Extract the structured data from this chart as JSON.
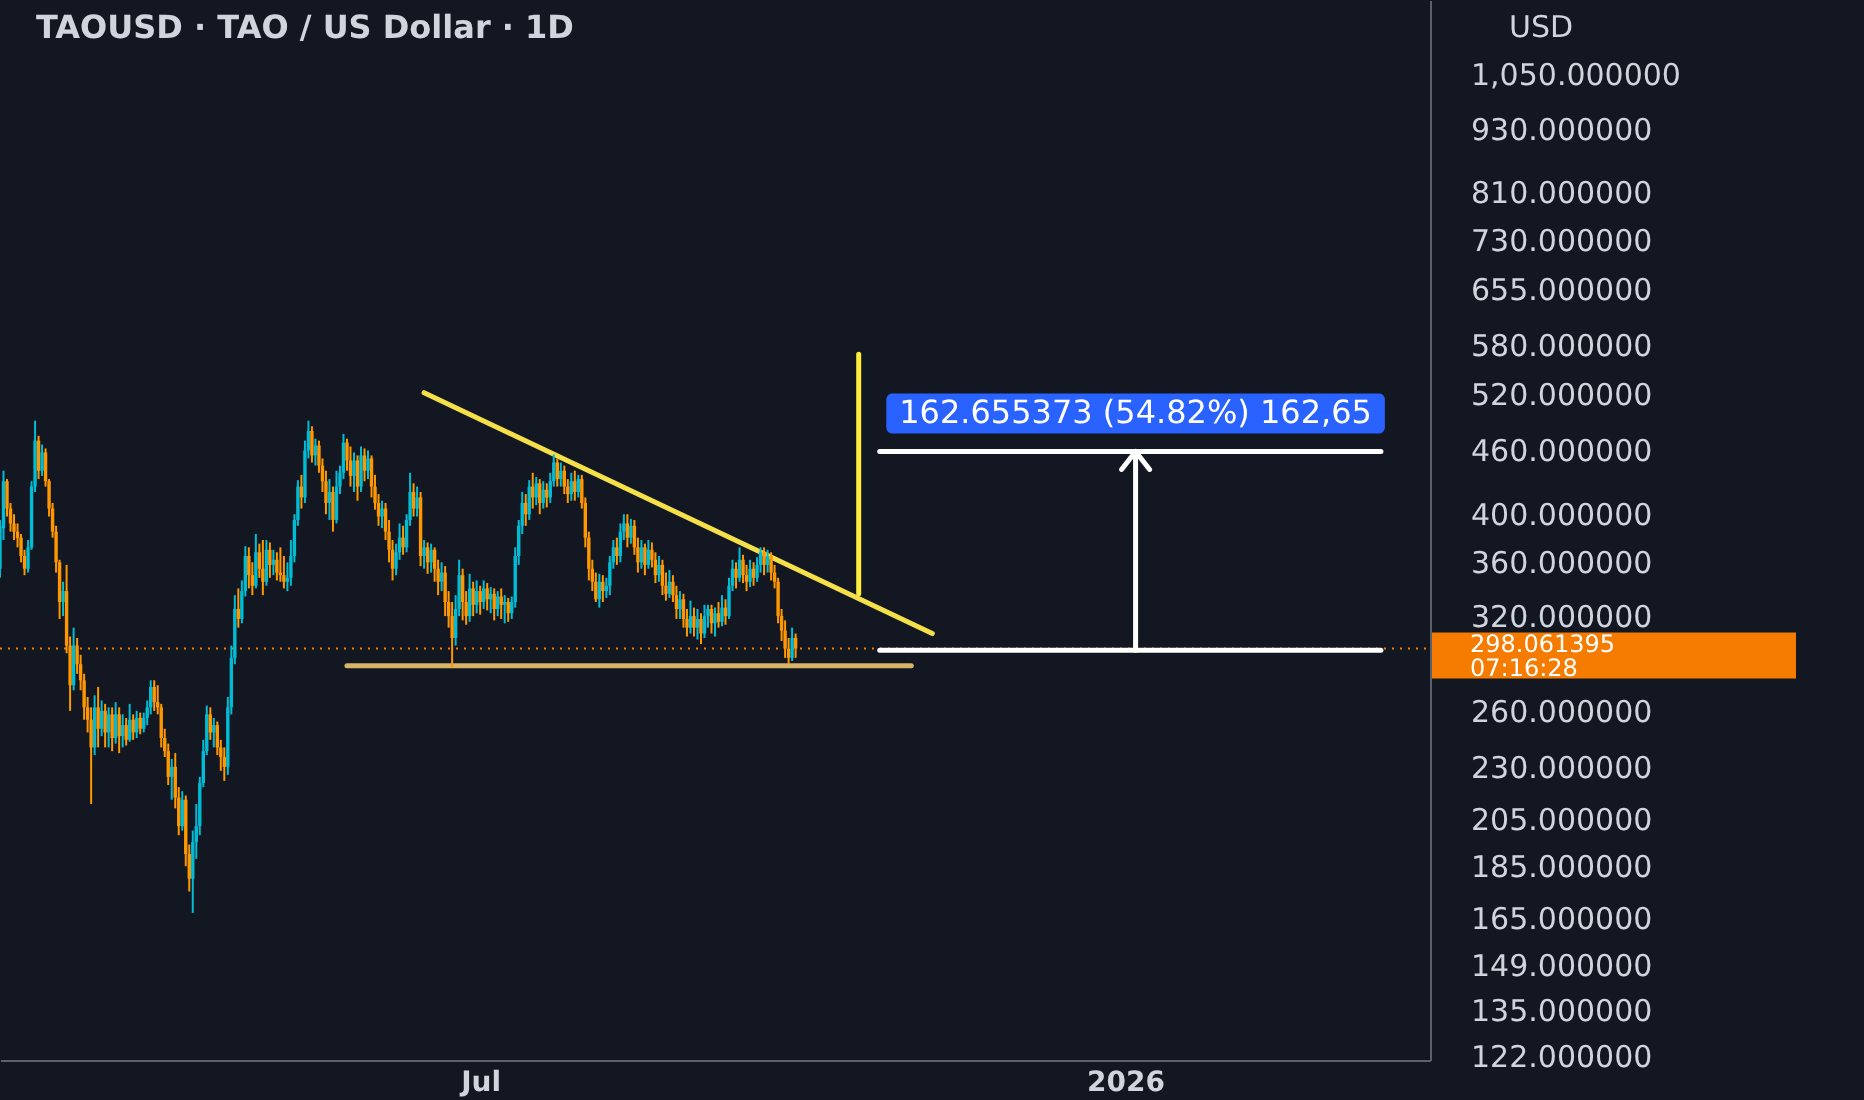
{
  "chart_data": {
    "type": "candlestick",
    "title": "TAOUSD · TAO / US Dollar · 1D",
    "ylabel": "USD",
    "x": [
      "2025-02-14",
      "2025-02-15",
      "2025-02-16",
      "2025-02-17",
      "2025-02-18",
      "2025-02-19",
      "2025-02-20",
      "2025-02-21",
      "2025-02-22",
      "2025-02-23",
      "2025-02-24",
      "2025-02-25",
      "2025-02-26",
      "2025-02-27",
      "2025-02-28",
      "2025-03-01",
      "2025-03-02",
      "2025-03-03",
      "2025-03-04",
      "2025-03-05",
      "2025-03-06",
      "2025-03-07",
      "2025-03-08",
      "2025-03-09",
      "2025-03-10",
      "2025-03-11",
      "2025-03-12",
      "2025-03-13",
      "2025-03-14",
      "2025-03-15",
      "2025-03-16",
      "2025-03-17",
      "2025-03-18",
      "2025-03-19",
      "2025-03-20",
      "2025-03-21",
      "2025-03-22",
      "2025-03-23",
      "2025-03-24",
      "2025-03-25",
      "2025-03-26",
      "2025-03-27",
      "2025-03-28",
      "2025-03-29",
      "2025-03-30",
      "2025-03-31",
      "2025-04-01",
      "2025-04-02",
      "2025-04-03",
      "2025-04-04",
      "2025-04-05",
      "2025-04-06",
      "2025-04-07",
      "2025-04-08",
      "2025-04-09",
      "2025-04-10",
      "2025-04-11",
      "2025-04-12",
      "2025-04-13",
      "2025-04-14",
      "2025-04-15",
      "2025-04-16",
      "2025-04-17",
      "2025-04-18",
      "2025-04-19",
      "2025-04-20",
      "2025-04-21",
      "2025-04-22",
      "2025-04-23",
      "2025-04-24",
      "2025-04-25",
      "2025-04-26",
      "2025-04-27",
      "2025-04-28",
      "2025-04-29",
      "2025-04-30",
      "2025-05-01",
      "2025-05-02",
      "2025-05-03",
      "2025-05-04",
      "2025-05-05",
      "2025-05-06",
      "2025-05-07",
      "2025-05-08",
      "2025-05-09",
      "2025-05-10",
      "2025-05-11",
      "2025-05-12",
      "2025-05-13",
      "2025-05-14",
      "2025-05-15",
      "2025-05-16",
      "2025-05-17",
      "2025-05-18",
      "2025-05-19",
      "2025-05-20",
      "2025-05-21",
      "2025-05-22",
      "2025-05-23",
      "2025-05-24",
      "2025-05-25",
      "2025-05-26",
      "2025-05-27",
      "2025-05-28",
      "2025-05-29",
      "2025-05-30",
      "2025-05-31",
      "2025-06-01",
      "2025-06-02",
      "2025-06-03",
      "2025-06-04",
      "2025-06-05",
      "2025-06-06",
      "2025-06-07",
      "2025-06-08",
      "2025-06-09",
      "2025-06-10",
      "2025-06-11",
      "2025-06-12",
      "2025-06-13",
      "2025-06-14",
      "2025-06-15",
      "2025-06-16",
      "2025-06-17",
      "2025-06-18",
      "2025-06-19",
      "2025-06-20",
      "2025-06-21",
      "2025-06-22",
      "2025-06-23",
      "2025-06-24",
      "2025-06-25",
      "2025-06-26",
      "2025-06-27",
      "2025-06-28",
      "2025-06-29",
      "2025-06-30",
      "2025-07-01",
      "2025-07-02",
      "2025-07-03",
      "2025-07-04",
      "2025-07-05",
      "2025-07-06",
      "2025-07-07",
      "2025-07-08",
      "2025-07-09",
      "2025-07-10",
      "2025-07-11",
      "2025-07-12",
      "2025-07-13",
      "2025-07-14",
      "2025-07-15",
      "2025-07-16",
      "2025-07-17",
      "2025-07-18",
      "2025-07-19",
      "2025-07-20",
      "2025-07-21",
      "2025-07-22",
      "2025-07-23",
      "2025-07-24",
      "2025-07-25",
      "2025-07-26",
      "2025-07-27",
      "2025-07-28",
      "2025-07-29",
      "2025-07-30",
      "2025-07-31",
      "2025-08-01",
      "2025-08-02",
      "2025-08-03",
      "2025-08-04",
      "2025-08-05",
      "2025-08-06",
      "2025-08-07",
      "2025-08-08",
      "2025-08-09",
      "2025-08-10",
      "2025-08-11",
      "2025-08-12",
      "2025-08-13",
      "2025-08-14",
      "2025-08-15",
      "2025-08-16",
      "2025-08-17",
      "2025-08-18",
      "2025-08-19",
      "2025-08-20",
      "2025-08-21",
      "2025-08-22",
      "2025-08-23",
      "2025-08-24",
      "2025-08-25",
      "2025-08-26",
      "2025-08-27",
      "2025-08-28",
      "2025-08-29",
      "2025-08-30",
      "2025-08-31",
      "2025-09-01",
      "2025-09-02",
      "2025-09-03",
      "2025-09-04",
      "2025-09-05",
      "2025-09-06",
      "2025-09-07",
      "2025-09-08",
      "2025-09-09",
      "2025-09-10",
      "2025-09-11",
      "2025-09-12",
      "2025-09-13",
      "2025-09-14",
      "2025-09-15",
      "2025-09-16",
      "2025-09-17",
      "2025-09-18",
      "2025-09-19",
      "2025-09-20",
      "2025-09-21",
      "2025-09-22",
      "2025-09-23",
      "2025-09-24",
      "2025-09-25",
      "2025-09-26",
      "2025-09-27",
      "2025-09-28",
      "2025-09-29"
    ],
    "ohlc": [
      [
        355,
        395,
        348,
        390
      ],
      [
        388,
        440,
        378,
        430
      ],
      [
        430,
        432,
        398,
        405
      ],
      [
        405,
        410,
        385,
        392
      ],
      [
        392,
        400,
        378,
        385
      ],
      [
        385,
        392,
        372,
        380
      ],
      [
        380,
        383,
        360,
        365
      ],
      [
        365,
        370,
        350,
        355
      ],
      [
        355,
        378,
        352,
        372
      ],
      [
        372,
        430,
        370,
        425
      ],
      [
        425,
        491,
        420,
        470
      ],
      [
        470,
        475,
        432,
        440
      ],
      [
        440,
        466,
        435,
        458
      ],
      [
        458,
        462,
        425,
        430
      ],
      [
        430,
        432,
        398,
        405
      ],
      [
        405,
        410,
        380,
        385
      ],
      [
        385,
        390,
        352,
        360
      ],
      [
        360,
        362,
        318,
        330
      ],
      [
        330,
        345,
        320,
        338
      ],
      [
        338,
        358,
        295,
        300
      ],
      [
        300,
        306,
        260,
        275
      ],
      [
        275,
        312,
        272,
        300
      ],
      [
        300,
        305,
        282,
        288
      ],
      [
        288,
        294,
        272,
        278
      ],
      [
        278,
        282,
        255,
        262
      ],
      [
        262,
        268,
        248,
        255
      ],
      [
        255,
        262,
        212,
        240
      ],
      [
        240,
        269,
        236,
        262
      ],
      [
        262,
        274,
        240,
        250
      ],
      [
        250,
        266,
        246,
        260
      ],
      [
        260,
        264,
        240,
        248
      ],
      [
        248,
        262,
        240,
        258
      ],
      [
        258,
        262,
        238,
        245
      ],
      [
        245,
        265,
        242,
        258
      ],
      [
        258,
        262,
        237,
        246
      ],
      [
        246,
        258,
        240,
        252
      ],
      [
        252,
        256,
        241,
        244
      ],
      [
        244,
        264,
        243,
        255
      ],
      [
        255,
        258,
        244,
        248
      ],
      [
        248,
        260,
        245,
        256
      ],
      [
        256,
        259,
        247,
        250
      ],
      [
        250,
        259,
        248,
        256
      ],
      [
        256,
        266,
        252,
        262
      ],
      [
        262,
        278,
        258,
        274
      ],
      [
        274,
        278,
        260,
        265
      ],
      [
        265,
        275,
        258,
        262
      ],
      [
        262,
        264,
        240,
        245
      ],
      [
        245,
        250,
        235,
        238
      ],
      [
        238,
        242,
        221,
        225
      ],
      [
        225,
        234,
        214,
        230
      ],
      [
        230,
        237,
        210,
        215
      ],
      [
        215,
        220,
        198,
        202
      ],
      [
        202,
        218,
        200,
        214
      ],
      [
        214,
        216,
        185,
        190
      ],
      [
        190,
        194,
        175,
        180
      ],
      [
        180,
        200,
        167,
        195
      ],
      [
        195,
        212,
        188,
        202
      ],
      [
        202,
        225,
        198,
        222
      ],
      [
        222,
        244,
        220,
        238
      ],
      [
        238,
        263,
        236,
        258
      ],
      [
        258,
        262,
        244,
        248
      ],
      [
        248,
        256,
        240,
        252
      ],
      [
        252,
        254,
        236,
        240
      ],
      [
        240,
        244,
        228,
        235
      ],
      [
        235,
        240,
        223,
        230
      ],
      [
        230,
        268,
        226,
        262
      ],
      [
        262,
        300,
        258,
        292
      ],
      [
        292,
        335,
        288,
        325
      ],
      [
        325,
        340,
        312,
        318
      ],
      [
        318,
        346,
        315,
        338
      ],
      [
        338,
        373,
        334,
        365
      ],
      [
        365,
        372,
        340,
        350
      ],
      [
        350,
        360,
        335,
        342
      ],
      [
        342,
        383,
        340,
        368
      ],
      [
        368,
        375,
        348,
        355
      ],
      [
        355,
        378,
        335,
        345
      ],
      [
        345,
        378,
        342,
        370
      ],
      [
        370,
        376,
        348,
        358
      ],
      [
        358,
        370,
        350,
        362
      ],
      [
        362,
        368,
        346,
        352
      ],
      [
        352,
        372,
        345,
        350
      ],
      [
        350,
        365,
        340,
        345
      ],
      [
        345,
        360,
        338,
        348
      ],
      [
        348,
        378,
        342,
        365
      ],
      [
        365,
        400,
        360,
        395
      ],
      [
        395,
        431,
        390,
        425
      ],
      [
        425,
        436,
        405,
        415
      ],
      [
        415,
        470,
        410,
        460
      ],
      [
        460,
        491,
        452,
        480
      ],
      [
        480,
        485,
        448,
        455
      ],
      [
        455,
        472,
        445,
        465
      ],
      [
        465,
        470,
        438,
        445
      ],
      [
        445,
        452,
        420,
        430
      ],
      [
        430,
        440,
        400,
        410
      ],
      [
        410,
        432,
        395,
        420
      ],
      [
        420,
        425,
        385,
        395
      ],
      [
        395,
        440,
        392,
        425
      ],
      [
        425,
        445,
        418,
        438
      ],
      [
        438,
        477,
        432,
        468
      ],
      [
        468,
        472,
        440,
        450
      ],
      [
        450,
        464,
        425,
        435
      ],
      [
        435,
        458,
        420,
        450
      ],
      [
        450,
        455,
        412,
        425
      ],
      [
        425,
        464,
        420,
        455
      ],
      [
        455,
        462,
        430,
        440
      ],
      [
        440,
        460,
        432,
        452
      ],
      [
        452,
        455,
        415,
        425
      ],
      [
        425,
        436,
        404,
        410
      ],
      [
        410,
        418,
        390,
        398
      ],
      [
        398,
        412,
        388,
        405
      ],
      [
        405,
        410,
        378,
        385
      ],
      [
        385,
        395,
        360,
        370
      ],
      [
        370,
        378,
        346,
        355
      ],
      [
        355,
        375,
        350,
        368
      ],
      [
        368,
        392,
        362,
        380
      ],
      [
        380,
        390,
        366,
        372
      ],
      [
        372,
        400,
        368,
        395
      ],
      [
        395,
        438,
        390,
        420
      ],
      [
        420,
        428,
        398,
        405
      ],
      [
        405,
        425,
        398,
        415
      ],
      [
        415,
        420,
        357,
        365
      ],
      [
        365,
        378,
        355,
        372
      ],
      [
        372,
        376,
        351,
        360
      ],
      [
        360,
        375,
        352,
        370
      ],
      [
        370,
        372,
        345,
        355
      ],
      [
        355,
        362,
        335,
        345
      ],
      [
        345,
        360,
        338,
        352
      ],
      [
        352,
        357,
        320,
        330
      ],
      [
        330,
        338,
        312,
        320
      ],
      [
        320,
        330,
        286,
        305
      ],
      [
        305,
        335,
        300,
        325
      ],
      [
        325,
        362,
        320,
        350
      ],
      [
        350,
        355,
        317,
        330
      ],
      [
        330,
        338,
        314,
        320
      ],
      [
        320,
        351,
        316,
        340
      ],
      [
        340,
        345,
        320,
        328
      ],
      [
        328,
        346,
        322,
        338
      ],
      [
        338,
        342,
        321,
        330
      ],
      [
        330,
        346,
        325,
        340
      ],
      [
        340,
        344,
        324,
        332
      ],
      [
        332,
        341,
        322,
        336
      ],
      [
        336,
        340,
        317,
        325
      ],
      [
        325,
        338,
        320,
        334
      ],
      [
        334,
        340,
        318,
        328
      ],
      [
        328,
        335,
        315,
        330
      ],
      [
        330,
        333,
        316,
        322
      ],
      [
        322,
        334,
        318,
        330
      ],
      [
        330,
        372,
        326,
        365
      ],
      [
        365,
        395,
        358,
        390
      ],
      [
        390,
        420,
        383,
        410
      ],
      [
        410,
        418,
        390,
        400
      ],
      [
        400,
        431,
        395,
        425
      ],
      [
        425,
        438,
        405,
        415
      ],
      [
        415,
        434,
        408,
        428
      ],
      [
        428,
        432,
        400,
        410
      ],
      [
        410,
        430,
        405,
        422
      ],
      [
        422,
        428,
        406,
        415
      ],
      [
        415,
        438,
        410,
        430
      ],
      [
        430,
        456,
        425,
        448
      ],
      [
        448,
        452,
        425,
        432
      ],
      [
        432,
        448,
        425,
        440
      ],
      [
        440,
        445,
        418,
        425
      ],
      [
        425,
        432,
        410,
        418
      ],
      [
        418,
        438,
        412,
        430
      ],
      [
        430,
        440,
        412,
        420
      ],
      [
        420,
        436,
        415,
        432
      ],
      [
        432,
        436,
        405,
        410
      ],
      [
        410,
        415,
        372,
        380
      ],
      [
        380,
        385,
        346,
        355
      ],
      [
        355,
        362,
        338,
        345
      ],
      [
        345,
        352,
        330,
        332
      ],
      [
        332,
        351,
        326,
        345
      ],
      [
        345,
        350,
        330,
        338
      ],
      [
        338,
        348,
        333,
        342
      ],
      [
        342,
        365,
        335,
        360
      ],
      [
        360,
        378,
        355,
        372
      ],
      [
        372,
        380,
        358,
        365
      ],
      [
        365,
        392,
        360,
        385
      ],
      [
        385,
        400,
        378,
        392
      ],
      [
        392,
        400,
        372,
        380
      ],
      [
        380,
        396,
        375,
        390
      ],
      [
        390,
        395,
        366,
        372
      ],
      [
        372,
        380,
        352,
        360
      ],
      [
        360,
        378,
        355,
        372
      ],
      [
        372,
        375,
        350,
        358
      ],
      [
        358,
        378,
        355,
        370
      ],
      [
        370,
        376,
        356,
        362
      ],
      [
        362,
        368,
        344,
        350
      ],
      [
        350,
        365,
        345,
        358
      ],
      [
        358,
        362,
        335,
        342
      ],
      [
        342,
        352,
        331,
        336
      ],
      [
        336,
        354,
        333,
        345
      ],
      [
        345,
        350,
        330,
        335
      ],
      [
        335,
        342,
        318,
        325
      ],
      [
        325,
        338,
        318,
        332
      ],
      [
        332,
        336,
        312,
        318
      ],
      [
        318,
        325,
        306,
        312
      ],
      [
        312,
        331,
        308,
        320
      ],
      [
        320,
        326,
        306,
        312
      ],
      [
        312,
        325,
        304,
        318
      ],
      [
        318,
        322,
        301,
        308
      ],
      [
        308,
        328,
        305,
        320
      ],
      [
        320,
        328,
        312,
        325
      ],
      [
        325,
        328,
        308,
        315
      ],
      [
        315,
        326,
        306,
        322
      ],
      [
        322,
        330,
        312,
        316
      ],
      [
        316,
        335,
        313,
        326
      ],
      [
        326,
        332,
        314,
        320
      ],
      [
        320,
        348,
        318,
        342
      ],
      [
        342,
        362,
        338,
        355
      ],
      [
        355,
        360,
        340,
        348
      ],
      [
        348,
        372,
        345,
        362
      ],
      [
        362,
        366,
        344,
        350
      ],
      [
        350,
        358,
        338,
        345
      ],
      [
        345,
        362,
        341,
        355
      ],
      [
        355,
        360,
        342,
        348
      ],
      [
        348,
        364,
        345,
        358
      ],
      [
        358,
        372,
        352,
        368
      ],
      [
        368,
        372,
        350,
        358
      ],
      [
        358,
        370,
        352,
        365
      ],
      [
        365,
        368,
        346,
        352
      ],
      [
        352,
        358,
        340,
        345
      ],
      [
        345,
        348,
        315,
        320
      ],
      [
        320,
        325,
        303,
        310
      ],
      [
        310,
        317,
        292,
        298
      ],
      [
        298,
        305,
        288,
        292
      ],
      [
        292,
        312,
        290,
        305
      ],
      [
        305,
        308,
        292,
        298.061395
      ]
    ],
    "colors": [
      "#00bcd4",
      "#00bcd4",
      "#ff9800",
      "#ff9800",
      "#ff9800",
      "#ff9800",
      "#ff9800",
      "#ff9800",
      "#00bcd4",
      "#00bcd4",
      "#00bcd4",
      "#ff9800",
      "#00bcd4",
      "#ff9800",
      "#ff9800",
      "#ff9800",
      "#ff9800",
      "#ff9800",
      "#00bcd4",
      "#ff9800",
      "#ff9800",
      "#00bcd4",
      "#ff9800",
      "#ff9800",
      "#ff9800",
      "#ff9800",
      "#ff9800",
      "#00bcd4",
      "#ff9800",
      "#00bcd4",
      "#ff9800",
      "#00bcd4",
      "#ff9800",
      "#00bcd4",
      "#ff9800",
      "#00bcd4",
      "#ff9800",
      "#00bcd4",
      "#ff9800",
      "#00bcd4",
      "#ff9800",
      "#00bcd4",
      "#00bcd4",
      "#00bcd4",
      "#ff9800",
      "#ff9800",
      "#ff9800",
      "#ff9800",
      "#ff9800",
      "#00bcd4",
      "#ff9800",
      "#ff9800",
      "#00bcd4",
      "#ff9800",
      "#ff9800",
      "#00bcd4",
      "#00bcd4",
      "#00bcd4",
      "#00bcd4",
      "#00bcd4",
      "#ff9800",
      "#00bcd4",
      "#ff9800",
      "#ff9800",
      "#ff9800",
      "#00bcd4",
      "#00bcd4",
      "#00bcd4",
      "#ff9800",
      "#00bcd4",
      "#00bcd4",
      "#ff9800",
      "#ff9800",
      "#00bcd4",
      "#ff9800",
      "#ff9800",
      "#00bcd4",
      "#ff9800",
      "#00bcd4",
      "#ff9800",
      "#ff9800",
      "#ff9800",
      "#00bcd4",
      "#00bcd4",
      "#00bcd4",
      "#00bcd4",
      "#ff9800",
      "#00bcd4",
      "#00bcd4",
      "#ff9800",
      "#00bcd4",
      "#ff9800",
      "#ff9800",
      "#ff9800",
      "#00bcd4",
      "#ff9800",
      "#00bcd4",
      "#00bcd4",
      "#00bcd4",
      "#ff9800",
      "#ff9800",
      "#00bcd4",
      "#ff9800",
      "#00bcd4",
      "#ff9800",
      "#00bcd4",
      "#ff9800",
      "#ff9800",
      "#ff9800",
      "#00bcd4",
      "#ff9800",
      "#ff9800",
      "#ff9800",
      "#00bcd4",
      "#00bcd4",
      "#ff9800",
      "#00bcd4",
      "#00bcd4",
      "#ff9800",
      "#00bcd4",
      "#ff9800",
      "#00bcd4",
      "#ff9800",
      "#00bcd4",
      "#ff9800",
      "#ff9800",
      "#00bcd4",
      "#ff9800",
      "#ff9800",
      "#ff9800",
      "#00bcd4",
      "#00bcd4",
      "#ff9800",
      "#ff9800",
      "#00bcd4",
      "#ff9800",
      "#00bcd4",
      "#ff9800",
      "#00bcd4",
      "#ff9800",
      "#00bcd4",
      "#ff9800",
      "#00bcd4",
      "#ff9800",
      "#00bcd4",
      "#ff9800",
      "#00bcd4",
      "#00bcd4",
      "#00bcd4",
      "#00bcd4",
      "#ff9800",
      "#00bcd4",
      "#ff9800",
      "#00bcd4",
      "#ff9800",
      "#00bcd4",
      "#ff9800",
      "#00bcd4",
      "#00bcd4",
      "#ff9800",
      "#00bcd4",
      "#ff9800",
      "#ff9800",
      "#00bcd4",
      "#ff9800",
      "#00bcd4",
      "#ff9800",
      "#ff9800",
      "#ff9800",
      "#ff9800",
      "#ff9800",
      "#00bcd4",
      "#ff9800",
      "#00bcd4",
      "#00bcd4",
      "#00bcd4",
      "#ff9800",
      "#00bcd4",
      "#00bcd4",
      "#ff9800",
      "#00bcd4",
      "#ff9800",
      "#ff9800",
      "#00bcd4",
      "#ff9800",
      "#00bcd4",
      "#ff9800",
      "#ff9800",
      "#00bcd4",
      "#ff9800",
      "#ff9800",
      "#00bcd4",
      "#ff9800",
      "#ff9800",
      "#00bcd4",
      "#ff9800",
      "#ff9800",
      "#00bcd4",
      "#ff9800",
      "#00bcd4",
      "#ff9800",
      "#00bcd4",
      "#00bcd4",
      "#ff9800",
      "#00bcd4",
      "#ff9800",
      "#00bcd4",
      "#ff9800",
      "#00bcd4",
      "#00bcd4",
      "#ff9800",
      "#00bcd4",
      "#ff9800",
      "#ff9800",
      "#00bcd4",
      "#ff9800",
      "#00bcd4",
      "#00bcd4",
      "#ff9800",
      "#00bcd4",
      "#ff9800",
      "#ff9800",
      "#ff9800",
      "#ff9800",
      "#ff9800",
      "#ff9800",
      "#00bcd4",
      "#ff9800"
    ],
    "xlim": [
      "2025-02-14",
      "2026-03-29"
    ],
    "xticks": [
      {
        "value": "2025-07-01",
        "label": "Jul"
      },
      {
        "value": "2026-01-01",
        "label": "2026"
      }
    ],
    "ylim": [
      121,
      1234
    ],
    "log": true,
    "yticks": [
      {
        "value": 1050,
        "label": "1,050.000000"
      },
      {
        "value": 930,
        "label": "930.000000"
      },
      {
        "value": 810,
        "label": "810.000000"
      },
      {
        "value": 730,
        "label": "730.000000"
      },
      {
        "value": 655,
        "label": "655.000000"
      },
      {
        "value": 580,
        "label": "580.000000"
      },
      {
        "value": 520,
        "label": "520.000000"
      },
      {
        "value": 460,
        "label": "460.000000"
      },
      {
        "value": 400,
        "label": "400.000000"
      },
      {
        "value": 360,
        "label": "360.000000"
      },
      {
        "value": 320,
        "label": "320.000000"
      },
      {
        "value": 260,
        "label": "260.000000"
      },
      {
        "value": 230,
        "label": "230.000000"
      },
      {
        "value": 205,
        "label": "205.000000"
      },
      {
        "value": 185,
        "label": "185.000000"
      },
      {
        "value": 165,
        "label": "165.000000"
      },
      {
        "value": 149,
        "label": "149.000000"
      },
      {
        "value": 135,
        "label": "135.000000"
      },
      {
        "value": 122,
        "label": "122.000000"
      }
    ],
    "ref_lines": [
      {
        "axis": "y",
        "value": 298.061395,
        "label": "298.061395",
        "color": "#f57c00",
        "line_style": "dotted"
      }
    ],
    "series": [
      {
        "type": "line",
        "color": "#f5e04a",
        "x": [
          "2025-06-15",
          "2025-11-07"
        ],
        "values": [
          522,
          308
        ]
      },
      {
        "type": "line",
        "color": "#d8b46a",
        "x": [
          "2025-05-24",
          "2025-11-01"
        ],
        "values": [
          287,
          287
        ]
      },
      {
        "type": "line",
        "color": "#ffeb3b",
        "x": [
          "2025-10-17",
          "2025-10-17"
        ],
        "values": [
          568,
          336
        ]
      },
      {
        "type": "line",
        "color": "#ffffff",
        "x": [
          "2025-10-23",
          "2026-03-15"
        ],
        "values": [
          459,
          459
        ]
      },
      {
        "type": "line",
        "color": "#ffffff",
        "x": [
          "2025-10-23",
          "2026-03-15"
        ],
        "values": [
          297,
          297
        ]
      }
    ],
    "annotations": [
      "07:16:28",
      {
        "text": "162.655373 (54.82%) 162,65",
        "x": "2026-01-04",
        "y": 459
      }
    ]
  }
}
